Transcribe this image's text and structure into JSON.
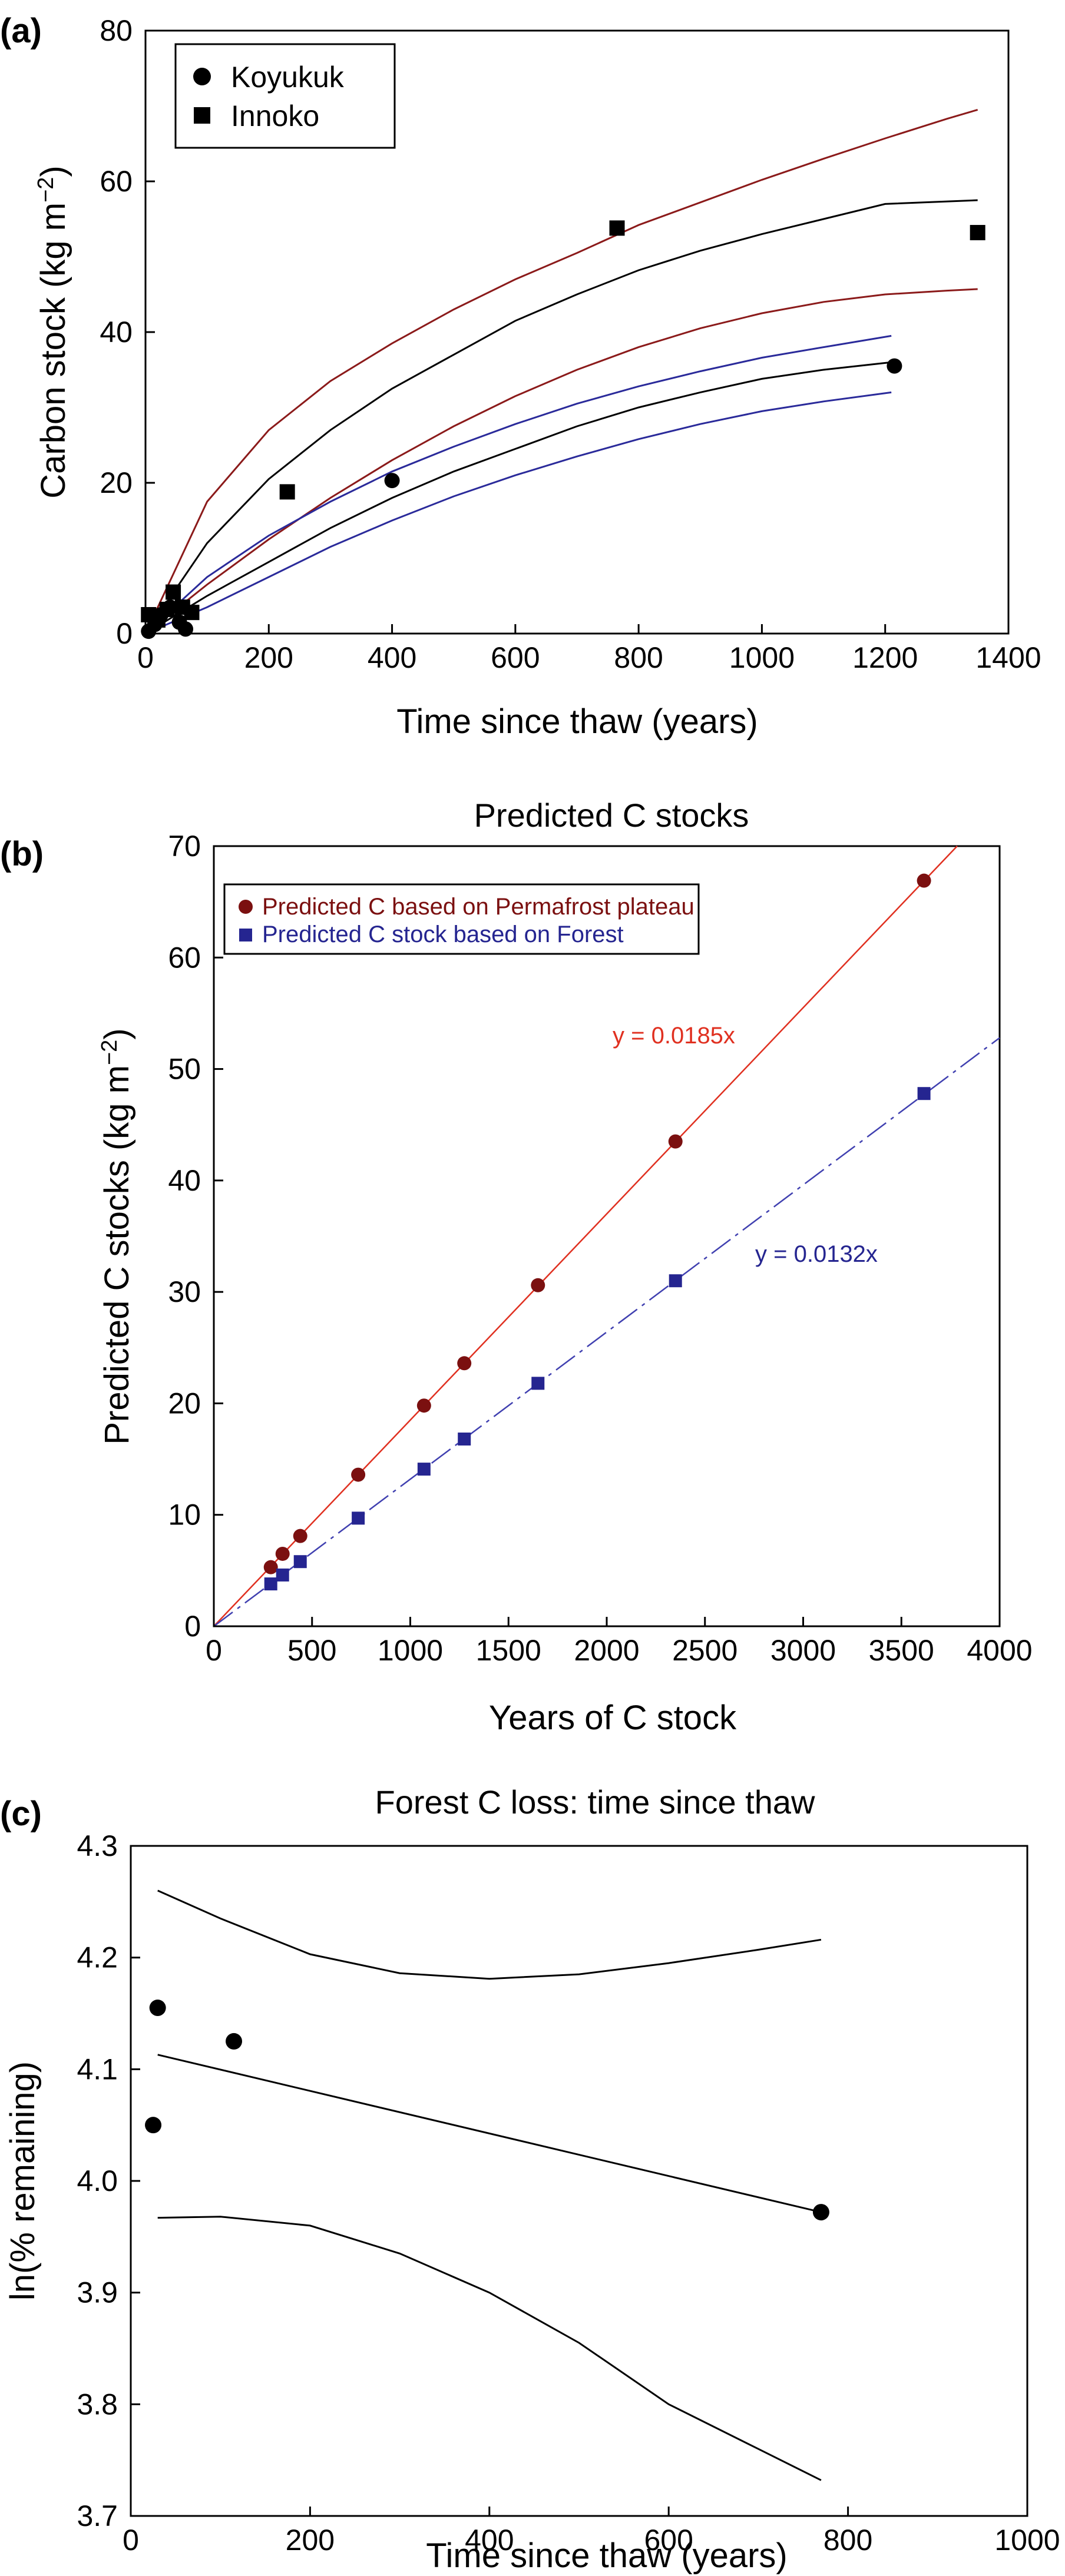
{
  "chart_data": [
    {
      "panel": "(a)",
      "type": "scatter",
      "title": "",
      "xlabel": "Time since thaw (years)",
      "ylabel": "Carbon stock (kg m",
      "ylabel_sup": "−2",
      "ylabel_close": ")",
      "xlim": [
        0,
        1400
      ],
      "ylim": [
        0,
        80
      ],
      "xticks": [
        0,
        200,
        400,
        600,
        800,
        1000,
        1200,
        1400
      ],
      "yticks": [
        0,
        20,
        40,
        60,
        80
      ],
      "legend_position": "top-left",
      "series": [
        {
          "name": "Koyukuk",
          "marker": "circle",
          "color": "#000000",
          "points": [
            [
              5,
              0.3
            ],
            [
              15,
              1.2
            ],
            [
              25,
              2.5
            ],
            [
              40,
              3.5
            ],
            [
              55,
              1.5
            ],
            [
              65,
              0.6
            ],
            [
              400,
              20.3
            ],
            [
              1215,
              35.5
            ]
          ]
        },
        {
          "name": "Innoko",
          "marker": "square",
          "color": "#000000",
          "points": [
            [
              5,
              2.5
            ],
            [
              20,
              1.8
            ],
            [
              35,
              3.2
            ],
            [
              45,
              5.5
            ],
            [
              60,
              3.5
            ],
            [
              75,
              2.8
            ],
            [
              230,
              18.8
            ],
            [
              765,
              53.8
            ],
            [
              1350,
              53.2
            ]
          ]
        }
      ],
      "fit_curves": [
        {
          "color": "#8B1A1A",
          "x": [
            0,
            100,
            200,
            300,
            400,
            500,
            600,
            700,
            800,
            900,
            1000,
            1100,
            1200,
            1300,
            1350
          ],
          "y": [
            0,
            17.5,
            27,
            33.5,
            38.5,
            43,
            47,
            50.5,
            54.2,
            57.2,
            60.2,
            63,
            65.7,
            68.3,
            69.5
          ]
        },
        {
          "color": "#000000",
          "x": [
            0,
            100,
            200,
            300,
            400,
            500,
            600,
            700,
            800,
            900,
            1000,
            1100,
            1200,
            1350
          ],
          "y": [
            0,
            12,
            20.5,
            27,
            32.5,
            37,
            41.5,
            45,
            48.2,
            50.8,
            53,
            55,
            57,
            57.5
          ]
        },
        {
          "color": "#8B1A1A",
          "x": [
            0,
            100,
            200,
            300,
            400,
            500,
            600,
            700,
            800,
            900,
            1000,
            1100,
            1200,
            1300,
            1350
          ],
          "y": [
            0,
            6.5,
            12.5,
            18,
            23,
            27.5,
            31.5,
            35,
            38,
            40.5,
            42.5,
            44,
            45,
            45.5,
            45.7
          ]
        },
        {
          "color": "#2A2A9A",
          "x": [
            0,
            100,
            200,
            300,
            400,
            500,
            600,
            700,
            800,
            900,
            1000,
            1100,
            1210
          ],
          "y": [
            0,
            7.5,
            13,
            17.5,
            21.5,
            24.8,
            27.8,
            30.5,
            32.8,
            34.8,
            36.6,
            38,
            39.5
          ]
        },
        {
          "color": "#000000",
          "x": [
            0,
            100,
            200,
            300,
            400,
            500,
            600,
            700,
            800,
            900,
            1000,
            1100,
            1210
          ],
          "y": [
            0,
            5,
            9.5,
            14,
            18,
            21.5,
            24.5,
            27.5,
            30,
            32,
            33.8,
            35,
            36
          ]
        },
        {
          "color": "#2A2A9A",
          "x": [
            0,
            100,
            200,
            300,
            400,
            500,
            600,
            700,
            800,
            900,
            1000,
            1100,
            1210
          ],
          "y": [
            0,
            3.5,
            7.5,
            11.5,
            15,
            18.2,
            21,
            23.5,
            25.8,
            27.8,
            29.5,
            30.8,
            32
          ]
        }
      ]
    },
    {
      "panel": "(b)",
      "type": "scatter",
      "title": "Predicted C stocks",
      "xlabel": "Years of C stock",
      "ylabel": "Predicted C stocks (kg m",
      "ylabel_sup": "−2",
      "ylabel_close": ")",
      "xlim": [
        0,
        4000
      ],
      "ylim": [
        0,
        70
      ],
      "xticks": [
        0,
        500,
        1000,
        1500,
        2000,
        2500,
        3000,
        3500,
        4000
      ],
      "yticks": [
        0,
        10,
        20,
        30,
        40,
        50,
        60,
        70
      ],
      "legend_position": "top-left",
      "series": [
        {
          "name": "Predicted C based on Permafrost plateau",
          "marker": "circle",
          "color": "#7B1010",
          "line_color": "#E03020",
          "slope": 0.0185,
          "equation": "y = 0.0185x",
          "x": [
            290,
            350,
            440,
            735,
            1070,
            1275,
            1650,
            2350,
            3615
          ],
          "y": [
            5.3,
            6.5,
            8.1,
            13.6,
            19.8,
            23.6,
            30.6,
            43.5,
            66.9
          ]
        },
        {
          "name": "Predicted C stock based on Forest",
          "marker": "square",
          "color": "#252590",
          "line_color": "#4040B0",
          "slope": 0.0132,
          "equation": "y = 0.0132x",
          "x": [
            290,
            350,
            440,
            735,
            1070,
            1275,
            1650,
            2350,
            3615
          ],
          "y": [
            3.8,
            4.6,
            5.8,
            9.7,
            14.1,
            16.8,
            21.8,
            31.0,
            47.8
          ]
        }
      ]
    },
    {
      "panel": "(c)",
      "type": "scatter",
      "title": "Forest C loss: time since thaw",
      "xlabel": "Time since thaw (years)",
      "ylabel": "ln(% remaining)",
      "xlim": [
        0,
        1000
      ],
      "ylim": [
        3.7,
        4.3
      ],
      "xticks": [
        0,
        200,
        400,
        600,
        800,
        1000
      ],
      "yticks": [
        3.7,
        3.8,
        3.9,
        4.0,
        4.1,
        4.2,
        4.3
      ],
      "points": {
        "x": [
          25,
          30,
          115,
          770
        ],
        "y": [
          4.05,
          4.155,
          4.125,
          3.972
        ]
      },
      "fit_line": {
        "x": [
          30,
          770
        ],
        "y": [
          4.113,
          3.972
        ]
      },
      "upper_band": {
        "x": [
          30,
          100,
          200,
          300,
          400,
          500,
          600,
          700,
          770
        ],
        "y": [
          4.26,
          4.235,
          4.203,
          4.186,
          4.181,
          4.185,
          4.195,
          4.207,
          4.216
        ]
      },
      "lower_band": {
        "x": [
          30,
          100,
          200,
          300,
          400,
          500,
          600,
          700,
          770
        ],
        "y": [
          3.967,
          3.968,
          3.96,
          3.935,
          3.9,
          3.855,
          3.8,
          3.76,
          3.732
        ]
      }
    }
  ]
}
